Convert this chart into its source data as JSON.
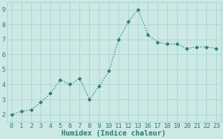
{
  "x_indices": [
    0,
    1,
    2,
    3,
    4,
    5,
    6,
    7,
    8,
    9,
    10,
    11,
    12,
    13,
    14,
    15,
    16,
    17,
    18,
    19,
    20,
    21
  ],
  "x_labels": [
    "0",
    "1",
    "2",
    "3",
    "4",
    "5",
    "6",
    "7",
    "8",
    "9",
    "10",
    "11",
    "12",
    "13",
    "16",
    "17",
    "18",
    "19",
    "20",
    "21",
    "22",
    "23"
  ],
  "y": [
    2.0,
    2.2,
    2.3,
    2.8,
    3.4,
    4.3,
    4.0,
    4.4,
    3.0,
    3.9,
    4.9,
    7.0,
    8.2,
    9.0,
    7.3,
    6.8,
    6.7,
    6.7,
    6.4,
    6.5,
    6.5,
    6.4
  ],
  "line_color": "#2d7d72",
  "bg_color": "#cce9e5",
  "grid_color": "#a8d4cf",
  "xlabel": "Humidex (Indice chaleur)",
  "xlim": [
    -0.5,
    21.5
  ],
  "ylim": [
    1.5,
    9.5
  ],
  "yticks": [
    2,
    3,
    4,
    5,
    6,
    7,
    8,
    9
  ],
  "xlabel_color": "#2d7d72",
  "tick_color": "#2d7d72",
  "marker": "D",
  "marker_size": 2.5,
  "line_width": 1.0,
  "tick_fontsize": 6.5,
  "xlabel_fontsize": 7.5
}
